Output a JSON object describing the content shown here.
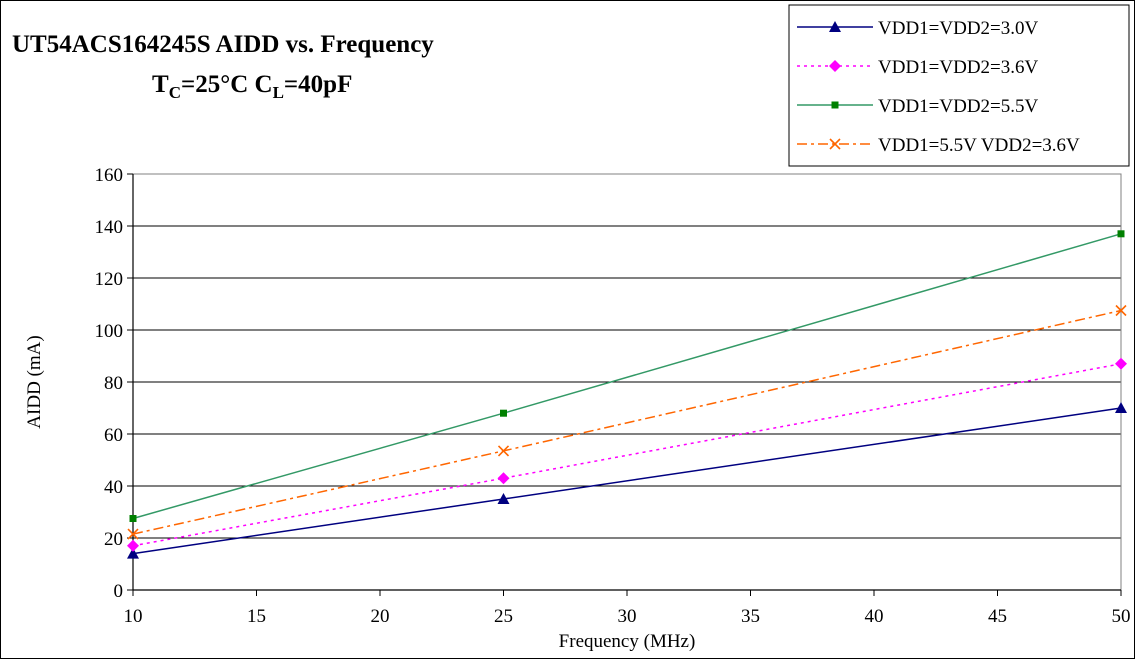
{
  "chart_data": {
    "type": "line",
    "title": "UT54ACS164245S AIDD vs. Frequency",
    "subtitle": {
      "prefix": "T",
      "prefix_sub": "C",
      "middle": "=25°C C",
      "middle_sub": "L",
      "suffix": "=40pF"
    },
    "xlabel": "Frequency (MHz)",
    "ylabel": "AIDD (mA)",
    "xlim": [
      10,
      50
    ],
    "ylim": [
      0,
      160
    ],
    "xticks": [
      10,
      15,
      20,
      25,
      30,
      35,
      40,
      45,
      50
    ],
    "yticks": [
      0,
      20,
      40,
      60,
      80,
      100,
      120,
      140,
      160
    ],
    "grid": "horizontal",
    "legend_position": "top-right",
    "x": [
      10,
      25,
      50
    ],
    "series": [
      {
        "name": "VDD1=VDD2=3.0V",
        "values": [
          14,
          35,
          70
        ],
        "color": "#000080",
        "dash": "solid",
        "marker": "triangle"
      },
      {
        "name": "VDD1=VDD2=3.6V",
        "values": [
          17,
          43,
          87
        ],
        "color": "#ff00ff",
        "dash": "dotted",
        "marker": "diamond"
      },
      {
        "name": "VDD1=VDD2=5.5V",
        "values": [
          27.5,
          68,
          137
        ],
        "color": "#339966",
        "dash": "solid",
        "marker": "square",
        "marker_color": "#008000"
      },
      {
        "name": "VDD1=5.5V VDD2=3.6V",
        "values": [
          21.5,
          53.5,
          107.5
        ],
        "color": "#ff6600",
        "dash": "dashdot",
        "marker": "x"
      }
    ]
  }
}
